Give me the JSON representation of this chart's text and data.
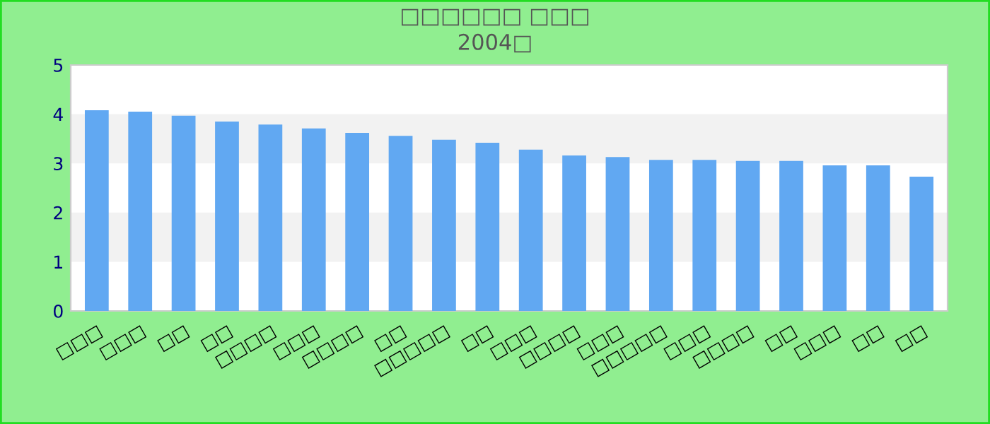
{
  "chart_data": {
    "type": "bar",
    "title": "□□□□□□ □□□",
    "subtitle": "2004□",
    "categories": [
      "□□□",
      "□□□",
      "□□",
      "□□",
      "□□□□",
      "□□□",
      "□□□□",
      "□□",
      "□□□□□",
      "□□",
      "□□□",
      "□□□□",
      "□□□",
      "□□□□□",
      "□□□",
      "□□□□",
      "□□",
      "□□□",
      "□□",
      "□□"
    ],
    "values": [
      4.08,
      4.05,
      3.97,
      3.85,
      3.79,
      3.71,
      3.62,
      3.56,
      3.48,
      3.42,
      3.28,
      3.16,
      3.13,
      3.07,
      3.07,
      3.05,
      3.05,
      2.96,
      2.96,
      2.73
    ],
    "color": "#61a8f2",
    "ylim": [
      0,
      5
    ],
    "yticks": [
      0,
      1,
      2,
      3,
      4,
      5
    ],
    "grid": false,
    "bands": [
      {
        "axis": "y",
        "from": 1,
        "to": 2,
        "color": "#f2f2f2"
      },
      {
        "axis": "y",
        "from": 3,
        "to": 4,
        "color": "#f2f2f2"
      }
    ]
  }
}
